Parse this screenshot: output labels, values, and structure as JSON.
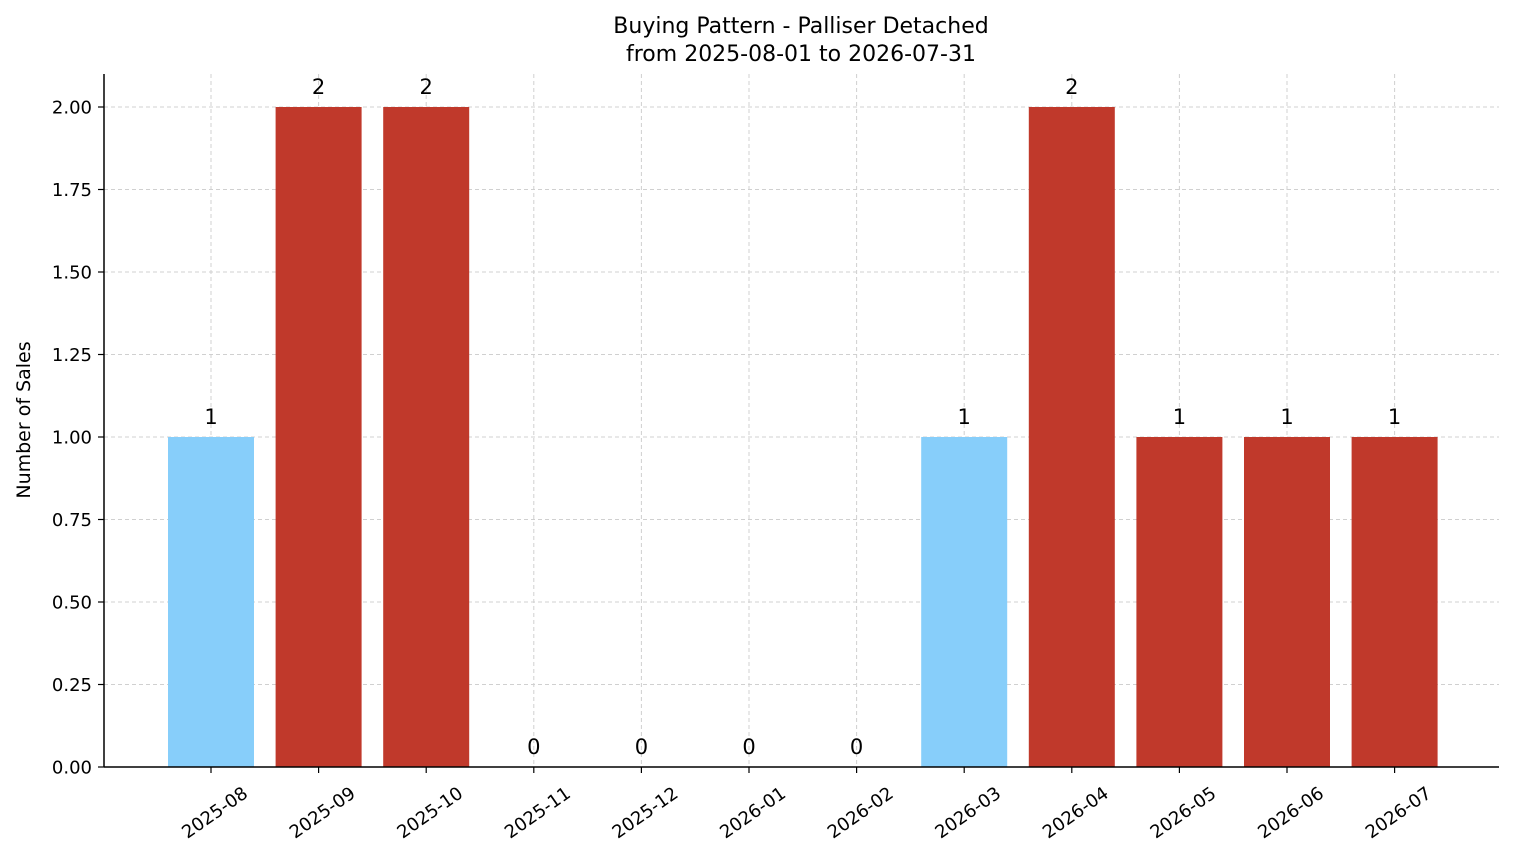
{
  "chart_data": {
    "type": "bar",
    "title": "Buying Pattern - Palliser Detached",
    "subtitle": "from 2025-08-01 to 2026-07-31",
    "xlabel": "",
    "ylabel": "Number of Sales",
    "categories": [
      "2025-08",
      "2025-09",
      "2025-10",
      "2025-11",
      "2025-12",
      "2026-01",
      "2026-02",
      "2026-03",
      "2026-04",
      "2026-05",
      "2026-06",
      "2026-07"
    ],
    "values": [
      1,
      2,
      2,
      0,
      0,
      0,
      0,
      1,
      2,
      1,
      1,
      1
    ],
    "data_labels": [
      "1",
      "2",
      "2",
      "0",
      "0",
      "0",
      "0",
      "1",
      "2",
      "1",
      "1",
      "1"
    ],
    "bar_colors": [
      "#87cefa",
      "#c0392b",
      "#c0392b",
      "#c0392b",
      "#c0392b",
      "#c0392b",
      "#c0392b",
      "#87cefa",
      "#c0392b",
      "#c0392b",
      "#c0392b",
      "#c0392b"
    ],
    "ylim": [
      0,
      2.1
    ],
    "yticks": [
      0.0,
      0.25,
      0.5,
      0.75,
      1.0,
      1.25,
      1.5,
      1.75,
      2.0
    ],
    "ytick_labels": [
      "0.00",
      "0.25",
      "0.50",
      "0.75",
      "1.00",
      "1.25",
      "1.50",
      "1.75",
      "2.00"
    ],
    "grid": true,
    "x_tick_rotation": 35
  }
}
